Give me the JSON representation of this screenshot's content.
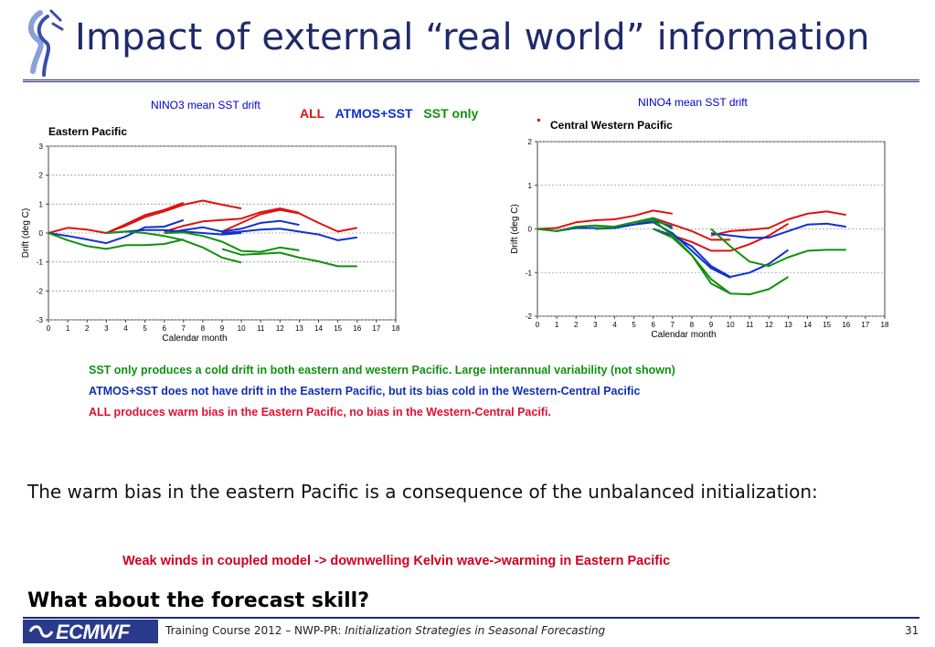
{
  "slide": {
    "title": "Impact of external “real world” information",
    "legend": {
      "all": "ALL",
      "atmos_sst": "ATMOS+SST",
      "sst_only": "SST only"
    },
    "notes": [
      "SST only produces a cold drift in both eastern and western Pacific. Large interannual variability (not shown)",
      "ATMOS+SST does not have drift in the Eastern Pacific, but its bias cold in the Western-Central Pacific",
      "ALL produces warm bias in the Eastern Pacific, no bias in the Western-Central Pacifi."
    ],
    "paragraph": "The warm bias in the eastern Pacific is a consequence of the unbalanced initialization:",
    "highlight": "Weak winds in coupled model -> downwelling Kelvin wave->warming in Eastern Pacific",
    "question": "What about the forecast skill?",
    "footer_prefix": "Training Course 2012 – NWP-PR: ",
    "footer_italic": "Initialization Strategies in Seasonal Forecasting",
    "page_number": "31",
    "logo_text": "ECMWF"
  },
  "colors": {
    "all": "#e01010",
    "atmos_sst": "#1030d0",
    "sst_only": "#109010",
    "title": "#1f2a6b"
  },
  "chart_data": [
    {
      "type": "line",
      "title": "NINO3 mean SST drift",
      "region": "Eastern Pacific",
      "xlabel": "Calendar month",
      "ylabel": "Drift (deg C)",
      "xlim": [
        0,
        18
      ],
      "ylim": [
        -3,
        3
      ],
      "xticks": [
        0,
        1,
        2,
        3,
        4,
        5,
        6,
        7,
        8,
        9,
        10,
        11,
        12,
        13,
        14,
        15,
        16,
        17,
        18
      ],
      "yticks": [
        -3,
        -2,
        -1,
        0,
        1,
        2,
        3
      ],
      "grid": true,
      "series": [
        {
          "name": "ALL",
          "group": "all",
          "x": [
            0,
            1,
            2,
            3,
            4,
            5,
            6,
            7
          ],
          "y": [
            0,
            0.18,
            0.12,
            0,
            0.3,
            0.62,
            0.8,
            1.05
          ]
        },
        {
          "name": "ALL",
          "group": "all",
          "x": [
            3,
            4,
            5,
            6,
            7,
            8,
            9,
            10
          ],
          "y": [
            0,
            0.25,
            0.55,
            0.75,
            0.98,
            1.12,
            0.98,
            0.85
          ]
        },
        {
          "name": "ALL",
          "group": "all",
          "x": [
            6,
            7,
            8,
            9,
            10,
            11,
            12,
            13
          ],
          "y": [
            0.05,
            0.25,
            0.4,
            0.45,
            0.5,
            0.72,
            0.85,
            0.7
          ]
        },
        {
          "name": "ALL",
          "group": "all",
          "x": [
            9,
            10,
            11,
            12,
            13,
            14,
            15,
            16
          ],
          "y": [
            0.05,
            0.35,
            0.65,
            0.8,
            0.68,
            0.35,
            0.05,
            0.18
          ]
        },
        {
          "name": "ATMOS+SST",
          "group": "atmos_sst",
          "x": [
            0,
            1,
            2,
            3,
            4,
            5,
            6,
            7
          ],
          "y": [
            0,
            -0.1,
            -0.22,
            -0.35,
            -0.12,
            0.2,
            0.22,
            0.45
          ]
        },
        {
          "name": "ATMOS+SST",
          "group": "atmos_sst",
          "x": [
            3,
            4,
            5,
            6,
            7,
            8,
            9,
            10
          ],
          "y": [
            0,
            0.05,
            0.1,
            0.1,
            0.05,
            0,
            -0.05,
            0
          ]
        },
        {
          "name": "ATMOS+SST",
          "group": "atmos_sst",
          "x": [
            6,
            7,
            8,
            9,
            10,
            11,
            12,
            13
          ],
          "y": [
            0,
            0.1,
            0.2,
            0.05,
            0.15,
            0.35,
            0.42,
            0.28
          ]
        },
        {
          "name": "ATMOS+SST",
          "group": "atmos_sst",
          "x": [
            9,
            10,
            11,
            12,
            13,
            14,
            15,
            16
          ],
          "y": [
            0,
            0.05,
            0.12,
            0.15,
            0.05,
            -0.05,
            -0.25,
            -0.15
          ]
        },
        {
          "name": "SST only",
          "group": "sst_only",
          "x": [
            0,
            1,
            2,
            3,
            4,
            5,
            6,
            7
          ],
          "y": [
            0,
            -0.25,
            -0.45,
            -0.55,
            -0.42,
            -0.42,
            -0.38,
            -0.22
          ]
        },
        {
          "name": "SST only",
          "group": "sst_only",
          "x": [
            3,
            4,
            5,
            6,
            7,
            8,
            9,
            10
          ],
          "y": [
            0,
            0.05,
            0,
            -0.1,
            -0.25,
            -0.5,
            -0.85,
            -1.02
          ]
        },
        {
          "name": "SST only",
          "group": "sst_only",
          "x": [
            6,
            7,
            8,
            9,
            10,
            11,
            12,
            13
          ],
          "y": [
            0,
            0.02,
            -0.1,
            -0.3,
            -0.62,
            -0.65,
            -0.5,
            -0.6
          ]
        },
        {
          "name": "SST only",
          "group": "sst_only",
          "x": [
            9,
            10,
            11,
            12,
            13,
            14,
            15,
            16
          ],
          "y": [
            -0.55,
            -0.75,
            -0.72,
            -0.68,
            -0.85,
            -0.98,
            -1.15,
            -1.15
          ]
        }
      ]
    },
    {
      "type": "line",
      "title": "NINO4 mean SST drift",
      "region": "Central Western  Pacific",
      "xlabel": "Calendar month",
      "ylabel": "Drift (deg C)",
      "xlim": [
        0,
        18
      ],
      "ylim": [
        -2,
        2
      ],
      "xticks": [
        0,
        1,
        2,
        3,
        4,
        5,
        6,
        7,
        8,
        9,
        10,
        11,
        12,
        13,
        14,
        15,
        16,
        17,
        18
      ],
      "yticks": [
        -2,
        -1,
        0,
        1,
        2
      ],
      "grid": true,
      "series": [
        {
          "name": "ALL",
          "group": "all",
          "x": [
            0,
            1,
            2,
            3,
            4,
            5,
            6,
            7
          ],
          "y": [
            0,
            0.02,
            0.15,
            0.2,
            0.22,
            0.3,
            0.42,
            0.35
          ]
        },
        {
          "name": "ALL",
          "group": "all",
          "x": [
            3,
            4,
            5,
            6,
            7,
            8,
            9,
            10
          ],
          "y": [
            0,
            0.05,
            0.15,
            0.25,
            0.1,
            -0.05,
            -0.25,
            -0.25
          ]
        },
        {
          "name": "ALL",
          "group": "all",
          "x": [
            6,
            7,
            8,
            9,
            10,
            11,
            12,
            13
          ],
          "y": [
            0,
            -0.15,
            -0.3,
            -0.5,
            -0.5,
            -0.35,
            -0.15,
            0.12
          ]
        },
        {
          "name": "ALL",
          "group": "all",
          "x": [
            9,
            10,
            11,
            12,
            13,
            14,
            15,
            16
          ],
          "y": [
            -0.15,
            -0.05,
            -0.02,
            0.02,
            0.22,
            0.35,
            0.4,
            0.32
          ]
        },
        {
          "name": "ATMOS+SST",
          "group": "atmos_sst",
          "x": [
            0,
            1,
            2,
            3,
            4,
            5,
            6,
            7
          ],
          "y": [
            0,
            -0.05,
            0.02,
            0.02,
            0.02,
            0.1,
            0.2,
            0.05
          ]
        },
        {
          "name": "ATMOS+SST",
          "group": "atmos_sst",
          "x": [
            3,
            4,
            5,
            6,
            7,
            8,
            9,
            10
          ],
          "y": [
            0,
            0.02,
            0.1,
            0.15,
            -0.1,
            -0.5,
            -0.9,
            -1.12
          ]
        },
        {
          "name": "ATMOS+SST",
          "group": "atmos_sst",
          "x": [
            6,
            7,
            8,
            9,
            10,
            11,
            12,
            13
          ],
          "y": [
            0,
            -0.15,
            -0.4,
            -0.85,
            -1.1,
            -1.0,
            -0.8,
            -0.48
          ]
        },
        {
          "name": "ATMOS+SST",
          "group": "atmos_sst",
          "x": [
            9,
            10,
            11,
            12,
            13,
            14,
            15,
            16
          ],
          "y": [
            -0.1,
            -0.15,
            -0.2,
            -0.2,
            -0.05,
            0.1,
            0.12,
            0.05
          ]
        },
        {
          "name": "SST only",
          "group": "sst_only",
          "x": [
            0,
            1,
            2,
            3,
            4,
            5,
            6,
            7
          ],
          "y": [
            0,
            -0.05,
            0.05,
            0.08,
            0.05,
            0.15,
            0.25,
            0.0
          ]
        },
        {
          "name": "SST only",
          "group": "sst_only",
          "x": [
            3,
            4,
            5,
            6,
            7,
            8,
            9,
            10
          ],
          "y": [
            0,
            0.05,
            0.15,
            0.2,
            -0.15,
            -0.6,
            -1.15,
            -1.48
          ]
        },
        {
          "name": "SST only",
          "group": "sst_only",
          "x": [
            6,
            7,
            8,
            9,
            10,
            11,
            12,
            13
          ],
          "y": [
            0,
            -0.2,
            -0.6,
            -1.25,
            -1.48,
            -1.5,
            -1.38,
            -1.1
          ]
        },
        {
          "name": "SST only",
          "group": "sst_only",
          "x": [
            9,
            10,
            11,
            12,
            13,
            14,
            15,
            16
          ],
          "y": [
            0,
            -0.4,
            -0.75,
            -0.85,
            -0.65,
            -0.5,
            -0.48,
            -0.48
          ]
        }
      ]
    }
  ]
}
